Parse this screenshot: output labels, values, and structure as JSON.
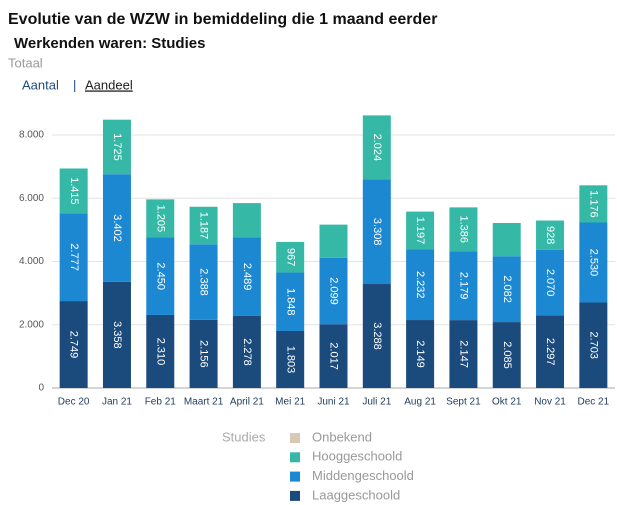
{
  "header": {
    "title": "Evolutie van de WZW in bemiddeling die 1 maand eerder",
    "subtitle": "Werkenden waren: Studies",
    "scope": "Totaal",
    "tabs": [
      "Aantal",
      "|",
      "Aandeel"
    ]
  },
  "chart_data": {
    "type": "stacked_bar",
    "categories": [
      "Dec 20",
      "Jan 21",
      "Feb 21",
      "Maart 21",
      "April 21",
      "Mei 21",
      "Juni 21",
      "Juli 21",
      "Aug 21",
      "Sept 21",
      "Okt 21",
      "Nov 21",
      "Dec 21"
    ],
    "legend_title": "Studies",
    "series": [
      {
        "name": "Laaggeschoold",
        "color": "#1b4a7c",
        "values": [
          2749,
          3358,
          2310,
          2156,
          2278,
          1803,
          2017,
          3288,
          2149,
          2147,
          2085,
          2297,
          2703
        ],
        "value_labels": [
          "2.749",
          "3.358",
          "2.310",
          "2.156",
          "2.278",
          "1.803",
          "2.017",
          "3.288",
          "2.149",
          "2.147",
          "2.085",
          "2.297",
          "2.703"
        ]
      },
      {
        "name": "Middengeschoold",
        "color": "#1c88d1",
        "values": [
          2777,
          3402,
          2450,
          2388,
          2489,
          1848,
          2099,
          3308,
          2232,
          2179,
          2082,
          2070,
          2530
        ],
        "value_labels": [
          "2.777",
          "3.402",
          "2.450",
          "2.388",
          "2.489",
          "1.848",
          "2.099",
          "3.308",
          "2.232",
          "2.179",
          "2.082",
          "2.070",
          "2.530"
        ]
      },
      {
        "name": "Hooggeschoold",
        "color": "#36b8a7",
        "values": [
          1415,
          1725,
          1205,
          1187,
          1080,
          967,
          1050,
          2024,
          1197,
          1386,
          1050,
          928,
          1176
        ],
        "value_labels": [
          "1.415",
          "1.725",
          "1.205",
          "1.187",
          null,
          "967",
          null,
          "2.024",
          "1.197",
          "1.386",
          null,
          "928",
          "1.176"
        ]
      },
      {
        "name": "Onbekend",
        "color": "#d8c9b6",
        "values": [
          0,
          0,
          0,
          0,
          0,
          0,
          0,
          0,
          0,
          0,
          0,
          0,
          0
        ]
      }
    ],
    "ylim": [
      0,
      8700
    ],
    "yticks": [
      0,
      {
        "value": 2000,
        "label": "2.000"
      },
      {
        "value": 4000,
        "label": "4.000"
      },
      {
        "value": 6000,
        "label": "6.000"
      },
      {
        "value": 8000,
        "label": "8.000"
      }
    ],
    "grid": true
  }
}
